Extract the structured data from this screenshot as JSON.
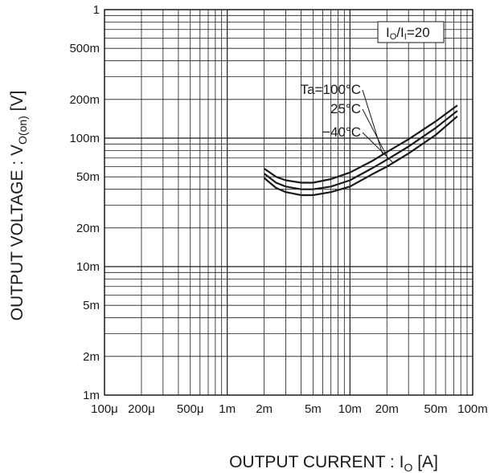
{
  "chart_data": {
    "type": "line",
    "x_scale": "log",
    "y_scale": "log",
    "xlim": [
      0.0001,
      0.1
    ],
    "ylim": [
      0.001,
      1
    ],
    "grid": true,
    "xlabel_main": "OUTPUT CURRENT : I",
    "xlabel_sub": "O",
    "xlabel_unit": " [A]",
    "ylabel_main": "OUTPUT VOLTAGE : V",
    "ylabel_sub": "O(on)",
    "ylabel_unit": " [V]",
    "x_ticks": [
      {
        "value": 0.0001,
        "label": "100μ"
      },
      {
        "value": 0.0002,
        "label": "200μ"
      },
      {
        "value": 0.0005,
        "label": "500μ"
      },
      {
        "value": 0.001,
        "label": "1m"
      },
      {
        "value": 0.002,
        "label": "2m"
      },
      {
        "value": 0.005,
        "label": "5m"
      },
      {
        "value": 0.01,
        "label": "10m"
      },
      {
        "value": 0.02,
        "label": "20m"
      },
      {
        "value": 0.05,
        "label": "50m"
      },
      {
        "value": 0.1,
        "label": "100m"
      }
    ],
    "y_ticks": [
      {
        "value": 1,
        "label": "1"
      },
      {
        "value": 0.5,
        "label": "500m"
      },
      {
        "value": 0.2,
        "label": "200m"
      },
      {
        "value": 0.1,
        "label": "100m"
      },
      {
        "value": 0.05,
        "label": "50m"
      },
      {
        "value": 0.02,
        "label": "20m"
      },
      {
        "value": 0.01,
        "label": "10m"
      },
      {
        "value": 0.005,
        "label": "5m"
      },
      {
        "value": 0.002,
        "label": "2m"
      },
      {
        "value": 0.001,
        "label": "1m"
      }
    ],
    "condition_label": {
      "main": "I",
      "sub1": "O",
      "mid": "/I",
      "sub2": "I",
      "tail": "=20"
    },
    "series": [
      {
        "name": "Ta=100°C",
        "x": [
          0.002,
          0.0025,
          0.003,
          0.004,
          0.005,
          0.007,
          0.01,
          0.015,
          0.02,
          0.03,
          0.05,
          0.075
        ],
        "y": [
          0.058,
          0.05,
          0.047,
          0.045,
          0.045,
          0.048,
          0.054,
          0.066,
          0.078,
          0.098,
          0.135,
          0.18
        ]
      },
      {
        "name": "25°C",
        "x": [
          0.002,
          0.0025,
          0.003,
          0.004,
          0.005,
          0.007,
          0.01,
          0.015,
          0.02,
          0.03,
          0.05,
          0.075
        ],
        "y": [
          0.053,
          0.045,
          0.042,
          0.04,
          0.04,
          0.042,
          0.047,
          0.058,
          0.068,
          0.086,
          0.12,
          0.163
        ]
      },
      {
        "name": "−40°C",
        "x": [
          0.002,
          0.0025,
          0.003,
          0.004,
          0.005,
          0.007,
          0.01,
          0.015,
          0.02,
          0.03,
          0.05,
          0.075
        ],
        "y": [
          0.049,
          0.041,
          0.038,
          0.036,
          0.036,
          0.038,
          0.042,
          0.052,
          0.06,
          0.076,
          0.106,
          0.148
        ]
      }
    ],
    "series_label_anchor_x": [
      0.0185,
      0.0205,
      0.0225
    ],
    "line_color": "#1a1a1a",
    "grid_color": "#1a1a1a"
  }
}
